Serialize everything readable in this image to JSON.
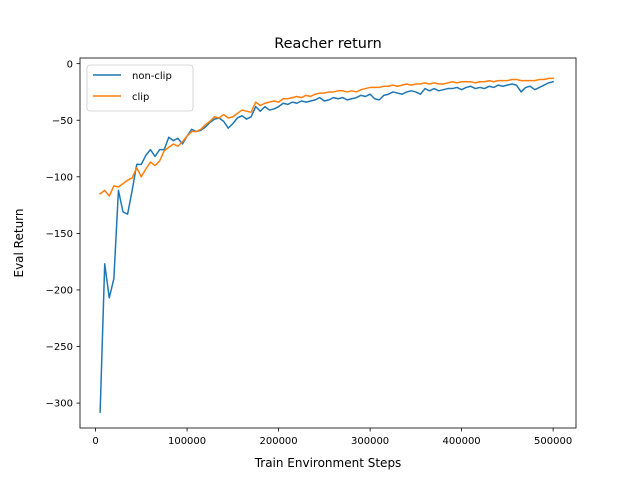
{
  "chart_data": {
    "type": "line",
    "title": "Reacher return",
    "xlabel": "Train Environment Steps",
    "ylabel": "Eval Return",
    "xlim": [
      -17000,
      525000
    ],
    "ylim": [
      -322,
      5
    ],
    "xticks": [
      {
        "value": 0,
        "label": "0"
      },
      {
        "value": 100000,
        "label": "100000"
      },
      {
        "value": 200000,
        "label": "200000"
      },
      {
        "value": 300000,
        "label": "300000"
      },
      {
        "value": 400000,
        "label": "400000"
      },
      {
        "value": 500000,
        "label": "500000"
      }
    ],
    "yticks": [
      {
        "value": 0,
        "label": "0"
      },
      {
        "value": -50,
        "label": "−50"
      },
      {
        "value": -100,
        "label": "−100"
      },
      {
        "value": -150,
        "label": "−150"
      },
      {
        "value": -200,
        "label": "−200"
      },
      {
        "value": -250,
        "label": "−250"
      },
      {
        "value": -300,
        "label": "−300"
      }
    ],
    "grid": false,
    "legend_position": "top-left",
    "series": [
      {
        "name": "non-clip",
        "color": "#1f77b4",
        "x": [
          5000,
          10000,
          15000,
          20000,
          25000,
          30000,
          35000,
          40000,
          45000,
          50000,
          55000,
          60000,
          65000,
          70000,
          75000,
          80000,
          85000,
          90000,
          95000,
          100000,
          105000,
          110000,
          115000,
          120000,
          125000,
          130000,
          135000,
          140000,
          145000,
          150000,
          155000,
          160000,
          165000,
          170000,
          175000,
          180000,
          185000,
          190000,
          195000,
          200000,
          205000,
          210000,
          215000,
          220000,
          225000,
          230000,
          235000,
          240000,
          245000,
          250000,
          255000,
          260000,
          265000,
          270000,
          275000,
          280000,
          285000,
          290000,
          295000,
          300000,
          305000,
          310000,
          315000,
          320000,
          325000,
          330000,
          335000,
          340000,
          345000,
          350000,
          355000,
          360000,
          365000,
          370000,
          375000,
          380000,
          385000,
          390000,
          395000,
          400000,
          405000,
          410000,
          415000,
          420000,
          425000,
          430000,
          435000,
          440000,
          445000,
          450000,
          455000,
          460000,
          465000,
          470000,
          475000,
          480000,
          485000,
          490000,
          495000,
          500000
        ],
        "values": [
          -308,
          -177,
          -207,
          -190,
          -112,
          -131,
          -133,
          -112,
          -89,
          -89,
          -81,
          -76,
          -82,
          -76,
          -76,
          -65,
          -68,
          -66,
          -71,
          -64,
          -58,
          -60,
          -59,
          -56,
          -52,
          -49,
          -48,
          -51,
          -57,
          -53,
          -48,
          -46,
          -49,
          -47,
          -38,
          -42,
          -38,
          -41,
          -40,
          -38,
          -35,
          -36,
          -34,
          -35,
          -33,
          -34,
          -33,
          -32,
          -30,
          -33,
          -32,
          -30,
          -31,
          -30,
          -32,
          -31,
          -30,
          -28,
          -29,
          -27,
          -31,
          -32,
          -28,
          -27,
          -25,
          -26,
          -27,
          -25,
          -24,
          -25,
          -27,
          -22,
          -24,
          -22,
          -24,
          -23,
          -22,
          -22,
          -21,
          -23,
          -21,
          -20,
          -22,
          -21,
          -22,
          -20,
          -21,
          -19,
          -20,
          -19,
          -18,
          -19,
          -25,
          -21,
          -20,
          -23,
          -21,
          -19,
          -17,
          -16
        ]
      },
      {
        "name": "clip",
        "color": "#ff7f0e",
        "x": [
          5000,
          10000,
          15000,
          20000,
          25000,
          30000,
          35000,
          40000,
          45000,
          50000,
          55000,
          60000,
          65000,
          70000,
          75000,
          80000,
          85000,
          90000,
          95000,
          100000,
          105000,
          110000,
          115000,
          120000,
          125000,
          130000,
          135000,
          140000,
          145000,
          150000,
          155000,
          160000,
          165000,
          170000,
          175000,
          180000,
          185000,
          190000,
          195000,
          200000,
          205000,
          210000,
          215000,
          220000,
          225000,
          230000,
          235000,
          240000,
          245000,
          250000,
          255000,
          260000,
          265000,
          270000,
          275000,
          280000,
          285000,
          290000,
          295000,
          300000,
          305000,
          310000,
          315000,
          320000,
          325000,
          330000,
          335000,
          340000,
          345000,
          350000,
          355000,
          360000,
          365000,
          370000,
          375000,
          380000,
          385000,
          390000,
          395000,
          400000,
          405000,
          410000,
          415000,
          420000,
          425000,
          430000,
          435000,
          440000,
          445000,
          450000,
          455000,
          460000,
          465000,
          470000,
          475000,
          480000,
          485000,
          490000,
          495000,
          500000
        ],
        "values": [
          -115,
          -112,
          -117,
          -108,
          -109,
          -106,
          -103,
          -101,
          -92,
          -100,
          -93,
          -87,
          -90,
          -86,
          -77,
          -74,
          -71,
          -73,
          -69,
          -64,
          -60,
          -60,
          -58,
          -54,
          -51,
          -47,
          -48,
          -45,
          -48,
          -47,
          -44,
          -41,
          -42,
          -43,
          -34,
          -37,
          -35,
          -34,
          -33,
          -34,
          -31,
          -31,
          -30,
          -29,
          -30,
          -28,
          -29,
          -27,
          -26,
          -26,
          -25,
          -25,
          -24,
          -24,
          -25,
          -24,
          -25,
          -23,
          -22,
          -21,
          -21,
          -21,
          -20,
          -20,
          -19,
          -20,
          -19,
          -18,
          -19,
          -18,
          -18,
          -17,
          -18,
          -17,
          -18,
          -18,
          -17,
          -16,
          -17,
          -16,
          -16,
          -16,
          -17,
          -16,
          -16,
          -15,
          -16,
          -15,
          -15,
          -15,
          -14,
          -14,
          -15,
          -15,
          -15,
          -15,
          -14,
          -14,
          -13,
          -13
        ]
      }
    ]
  }
}
